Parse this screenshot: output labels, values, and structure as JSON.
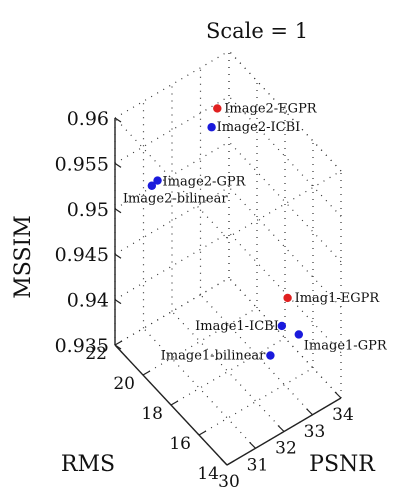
{
  "chart_data": {
    "type": "scatter3d",
    "title": "Scale = 1",
    "xlabel": "PSNR",
    "ylabel": "RMS",
    "zlabel": "MSSIM",
    "x_ticks": [
      "30",
      "31",
      "32",
      "33",
      "34"
    ],
    "y_ticks": [
      "14",
      "16",
      "18",
      "20",
      "22"
    ],
    "z_ticks": [
      "0.935",
      "0.94",
      "0.945",
      "0.95",
      "0.955",
      "0.96"
    ],
    "xlim": [
      30,
      34
    ],
    "ylim": [
      14,
      22
    ],
    "zlim": [
      0.935,
      0.96
    ],
    "grid": true,
    "points": [
      {
        "label": "Image2-EGPR",
        "x": 33.0,
        "y": 20.8,
        "z": 0.9575,
        "color": "#e02020"
      },
      {
        "label": "Image2-ICBI",
        "x": 32.8,
        "y": 20.8,
        "z": 0.9558,
        "color": "#1a1adc"
      },
      {
        "label": "Image2-GPR",
        "x": 31.1,
        "y": 21.2,
        "z": 0.9524,
        "color": "#1a1adc"
      },
      {
        "label": "Image2-bilinear",
        "x": 30.9,
        "y": 21.2,
        "z": 0.9522,
        "color": "#1a1adc"
      },
      {
        "label": "Imag1-EGPR",
        "x": 33.6,
        "y": 17.0,
        "z": 0.9418,
        "color": "#e02020"
      },
      {
        "label": "Image1-ICBI",
        "x": 33.3,
        "y": 16.8,
        "z": 0.9396,
        "color": "#1a1adc"
      },
      {
        "label": "Image1-GPR",
        "x": 33.6,
        "y": 16.2,
        "z": 0.9391,
        "color": "#1a1adc"
      },
      {
        "label": "Image1-bilinear",
        "x": 32.8,
        "y": 16.6,
        "z": 0.9376,
        "color": "#1a1adc"
      }
    ]
  }
}
